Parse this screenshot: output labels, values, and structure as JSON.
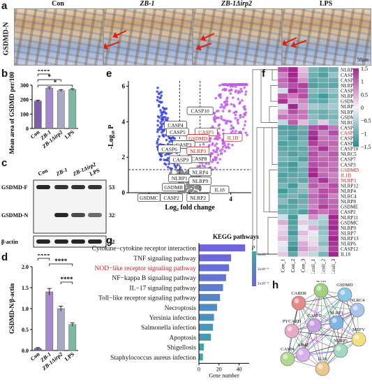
{
  "panel_a": {
    "label": "a",
    "ylabel": "GSDMD-N",
    "panels": [
      {
        "title": "Con",
        "italic": false
      },
      {
        "title": "ZB-1",
        "italic": true
      },
      {
        "title": "ZB-1Δirp2",
        "italic": true
      },
      {
        "title": "LPS",
        "italic": false
      }
    ],
    "scalebar": "50μm",
    "arrow_color": "#dd2211"
  },
  "panel_b": {
    "label": "b"
  },
  "panel_c": {
    "label": "c"
  },
  "panel_d": {
    "label": "d"
  },
  "panel_e": {
    "label": "e"
  },
  "panel_f": {
    "label": "f"
  },
  "panel_g": {
    "label": "g"
  },
  "panel_h": {
    "label": "h"
  },
  "western_blot": {
    "lanes": [
      "Con",
      "ZB-1",
      "ZB-1Δirp2",
      "LPS"
    ],
    "rows": [
      {
        "name": "GSDMD-F",
        "size": "53KDa"
      },
      {
        "name": "GSDMD-N",
        "size": "32KDa"
      },
      {
        "name": "β-actin",
        "size": "42KDa"
      }
    ]
  },
  "network": {
    "nodes": [
      "IL1B",
      "GSDMD",
      "CARD8",
      "NLRC4",
      "CASP1",
      "NLRP1",
      "PYCARD",
      "MEFV",
      "NLRP3",
      "AIM2",
      "IL18",
      "CASP4"
    ],
    "node_colors": [
      "#9fd07e",
      "#8ac6e8",
      "#e48a8a",
      "#a8c4ea",
      "#c8a2e0",
      "#7fb4e0",
      "#e8a8c8",
      "#f0e080",
      "#a0d8c0",
      "#d8b0e8",
      "#e8c890",
      "#b0d890"
    ]
  },
  "chart_data": [
    {
      "id": "b",
      "type": "bar",
      "ylabel": "Mean area of GSDMD per/100 um²",
      "categories": [
        "Con",
        "ZB-1",
        "ZB-1Δirp2",
        "LPS"
      ],
      "values": [
        190,
        280,
        262,
        270
      ],
      "errors": [
        6,
        8,
        7,
        6
      ],
      "ylim": [
        0,
        300
      ],
      "yticks": [
        0,
        100,
        200,
        300
      ],
      "colors": [
        "#7b5fa8",
        "#a58ac9",
        "#a9a9c2",
        "#7fb8a2"
      ],
      "significance": [
        {
          "from": 0,
          "to": 1,
          "label": "****"
        },
        {
          "from": 0,
          "to": 2,
          "label": "*"
        },
        {
          "from": 0,
          "to": 3,
          "label": "*"
        }
      ]
    },
    {
      "id": "d",
      "type": "bar",
      "ylabel": "GSDMD-N/β-actin",
      "categories": [
        "Con",
        "ZB-1",
        "ZB-1Δirp2",
        "LPS"
      ],
      "values": [
        0.05,
        1.4,
        1.0,
        0.62
      ],
      "errors": [
        0.02,
        0.08,
        0.06,
        0.04
      ],
      "ylim": [
        0,
        2.0
      ],
      "yticks": [
        0.0,
        0.5,
        1.0,
        1.5,
        2.0
      ],
      "colors": [
        "#7b5fa8",
        "#a58ac9",
        "#a9a9c2",
        "#7fb8a2"
      ],
      "significance": [
        {
          "from": 0,
          "to": 1,
          "label": "****"
        },
        {
          "from": 1,
          "to": 3,
          "label": "****"
        },
        {
          "from": 2,
          "to": 3,
          "label": "****"
        }
      ]
    },
    {
      "id": "e",
      "type": "scatter",
      "xlabel": "Log₂ fold change",
      "ylabel": "-Log₁₀ P",
      "xlim": [
        -6,
        6
      ],
      "ylim": [
        0,
        6.3
      ],
      "xticks": [
        -4,
        0,
        4
      ],
      "yticks": [
        0,
        2,
        4,
        6
      ],
      "thresholds": {
        "x": [
          -1,
          1
        ],
        "y": 1.3
      },
      "genes": [
        {
          "name": "CASP10",
          "x": 1.0,
          "y": 4.6,
          "highlight": false
        },
        {
          "name": "CASP4",
          "x": -1.4,
          "y": 3.8,
          "highlight": false
        },
        {
          "name": "CASP1",
          "x": 1.6,
          "y": 3.4,
          "highlight": true
        },
        {
          "name": "CASP5",
          "x": -1.2,
          "y": 3.4,
          "highlight": false
        },
        {
          "name": "GSDMD",
          "x": 0.8,
          "y": 3.05,
          "highlight": true
        },
        {
          "name": "IL1B",
          "x": 4.2,
          "y": 3.1,
          "highlight": true
        },
        {
          "name": "CASP3",
          "x": -0.6,
          "y": 2.7,
          "highlight": false
        },
        {
          "name": "NLRP3",
          "x": 0.8,
          "y": 2.35,
          "highlight": true
        },
        {
          "name": "CASP6",
          "x": -2.0,
          "y": 2.45,
          "highlight": false
        },
        {
          "name": "CASP8",
          "x": 0.9,
          "y": 1.9,
          "highlight": false
        },
        {
          "name": "CASP9",
          "x": -0.9,
          "y": 1.85,
          "highlight": false
        },
        {
          "name": "NLRP4",
          "x": 1.0,
          "y": 1.15,
          "highlight": false
        },
        {
          "name": "NLRP1",
          "x": -1.0,
          "y": 0.8,
          "highlight": false
        },
        {
          "name": "NLRP9",
          "x": 1.0,
          "y": 0.65,
          "highlight": false
        },
        {
          "name": "GSDMB",
          "x": -1.6,
          "y": 0.3,
          "highlight": false
        },
        {
          "name": "IL18",
          "x": 2.9,
          "y": 0.15,
          "highlight": false
        },
        {
          "name": "GSDMC",
          "x": -4.0,
          "y": -0.3,
          "highlight": false
        },
        {
          "name": "CASP2",
          "x": -1.8,
          "y": -0.3,
          "highlight": false
        },
        {
          "name": "NLRP2",
          "x": 0.8,
          "y": -0.3,
          "highlight": false
        }
      ],
      "colors": {
        "up": "#c05cf0",
        "down": "#3a44e0",
        "ns": "#8c8c8c",
        "highlight": "#d22020"
      }
    },
    {
      "id": "f",
      "type": "heatmap",
      "columns": [
        "Con_1",
        "Con_2",
        "Con_3",
        "E.coli_1",
        "E.coli_2",
        "E.coli_3"
      ],
      "rows": [
        "NLRP10",
        "CASP6",
        "CASP9",
        "NLRP2",
        "CASP14",
        "NLRP1",
        "GSDMB",
        "NLRP5",
        "NLRP14",
        "GSDMA",
        "NLRC3",
        "CASP8",
        "CASP1",
        "CASP4",
        "CASP5",
        "CASP10",
        "NLRC5",
        "CASP7",
        "CASP3",
        "GSDMD",
        "IL1B",
        "NLRP3",
        "NLRP12",
        "NLRP4",
        "NLRC4",
        "NLRP8",
        "GSDME",
        "CASP2",
        "NLRP11",
        "GSDMC",
        "NLRP9",
        "NLRP7",
        "NLRP13",
        "NLRP6",
        "CASP12",
        "IL18"
      ],
      "highlight_rows": [
        "CASP1",
        "GSDMD",
        "IL1B",
        "NLRP3"
      ],
      "values": [
        [
          1.2,
          1.5,
          0.4,
          -0.9,
          -1.1,
          -1.0
        ],
        [
          0.8,
          1.6,
          0.5,
          -1.0,
          -1.2,
          -0.7
        ],
        [
          1.0,
          1.4,
          0.7,
          -1.1,
          -1.0,
          -1.0
        ],
        [
          0.9,
          1.2,
          1.3,
          -1.2,
          -1.1,
          -1.1
        ],
        [
          -0.3,
          1.6,
          1.1,
          -0.8,
          -0.9,
          -0.7
        ],
        [
          1.1,
          0.9,
          1.2,
          -1.0,
          -1.3,
          -0.9
        ],
        [
          1.4,
          0.6,
          0.8,
          -1.0,
          -1.1,
          -0.7
        ],
        [
          -0.2,
          1.5,
          0.6,
          -0.6,
          -0.7,
          -0.6
        ],
        [
          0.6,
          1.2,
          0.9,
          -0.9,
          -1.0,
          -0.8
        ],
        [
          0.9,
          0.9,
          0.9,
          -0.8,
          -1.0,
          -0.9
        ],
        [
          -0.4,
          1.1,
          0.4,
          -0.7,
          0.3,
          -0.7
        ],
        [
          -1.2,
          -1.3,
          -1.0,
          1.2,
          1.3,
          0.9
        ],
        [
          -1.1,
          -1.2,
          -1.1,
          1.4,
          0.8,
          1.2
        ],
        [
          -1.0,
          -1.3,
          -1.0,
          1.5,
          0.9,
          0.9
        ],
        [
          -1.2,
          -1.1,
          -0.9,
          1.3,
          1.0,
          1.0
        ],
        [
          -1.1,
          -1.1,
          -1.1,
          1.0,
          1.4,
          0.9
        ],
        [
          -1.0,
          -1.2,
          -1.0,
          1.2,
          0.9,
          1.1
        ],
        [
          -0.9,
          -1.0,
          -1.2,
          1.1,
          1.0,
          1.0
        ],
        [
          -1.1,
          -1.3,
          -0.8,
          1.2,
          1.1,
          0.9
        ],
        [
          -1.0,
          -1.2,
          -1.0,
          1.4,
          0.9,
          1.0
        ],
        [
          -1.2,
          -1.1,
          -1.0,
          1.5,
          1.0,
          0.8
        ],
        [
          -1.1,
          -1.0,
          -1.1,
          1.0,
          1.4,
          0.9
        ],
        [
          -0.9,
          -1.3,
          -0.7,
          1.1,
          0.9,
          1.2
        ],
        [
          -1.3,
          -1.0,
          -0.8,
          0.8,
          1.2,
          1.1
        ],
        [
          -1.0,
          -0.9,
          -1.1,
          1.0,
          1.2,
          0.8
        ],
        [
          -0.8,
          -1.2,
          -1.0,
          0.9,
          1.1,
          1.0
        ],
        [
          -1.1,
          -1.1,
          -0.9,
          0.8,
          1.3,
          1.0
        ],
        [
          -0.9,
          -1.0,
          -1.2,
          1.1,
          0.9,
          1.1
        ],
        [
          -0.3,
          -1.3,
          -0.2,
          0.7,
          -0.5,
          1.5
        ],
        [
          0.5,
          -1.2,
          0.3,
          -0.4,
          -0.6,
          1.4
        ],
        [
          0.2,
          -1.1,
          -0.1,
          0.5,
          -0.8,
          1.6
        ],
        [
          0.3,
          -1.3,
          0.4,
          0.1,
          -0.7,
          1.3
        ],
        [
          0.4,
          -1.0,
          0.2,
          -0.2,
          -0.6,
          1.5
        ],
        [
          0.1,
          -1.2,
          0.5,
          0.2,
          -0.8,
          1.4
        ],
        [
          -0.2,
          -1.4,
          0.6,
          0.4,
          -0.5,
          1.3
        ],
        [
          0.3,
          -1.1,
          0.3,
          -0.4,
          -0.9,
          1.6
        ]
      ],
      "scale": {
        "min": -1.5,
        "max": 1.5,
        "ticks": [
          1.5,
          1,
          0.5,
          0,
          -0.5,
          -1,
          -1.5
        ]
      },
      "colors": {
        "low": "#2a8c8c",
        "mid": "#f6f2fa",
        "high": "#a2268e"
      }
    },
    {
      "id": "g",
      "type": "bar",
      "title": "KEGG pathways",
      "orientation": "horizontal",
      "xlabel": "Gene number",
      "xlim": [
        0,
        50
      ],
      "xticks": [
        0,
        20,
        40
      ],
      "categories": [
        "Cytokine−cytokine receptor interaction",
        "TNF signaling pathway",
        "NOD−like receptor signaling pathway",
        "NF−kappa B signaling pathway",
        "IL−17 signaling pathway",
        "Toll−like receptor signaling pathway",
        "Necroptosis",
        "Yersinia infection",
        "Salmonella infection",
        "Apoptosis",
        "Shigellosis",
        "Staphylococcus aureus infection"
      ],
      "highlight_category": "NOD−like receptor signaling pathway",
      "values": [
        46,
        32,
        30,
        27,
        24,
        21,
        18,
        15,
        14,
        12,
        5,
        4
      ],
      "p_values": [
        0.00028,
        0.00026,
        0.00024,
        0.00022,
        0.00019,
        0.00016,
        0.00014,
        0.00012,
        0.0001,
        8e-05,
        5e-05,
        4e-05
      ],
      "legend": {
        "title": "p",
        "ticks": [
          "3x10⁻⁴",
          "2x10⁻⁴",
          "1x10⁻⁴"
        ]
      },
      "colors": {
        "low": "#3fa6a8",
        "high": "#6f63e0"
      }
    }
  ]
}
